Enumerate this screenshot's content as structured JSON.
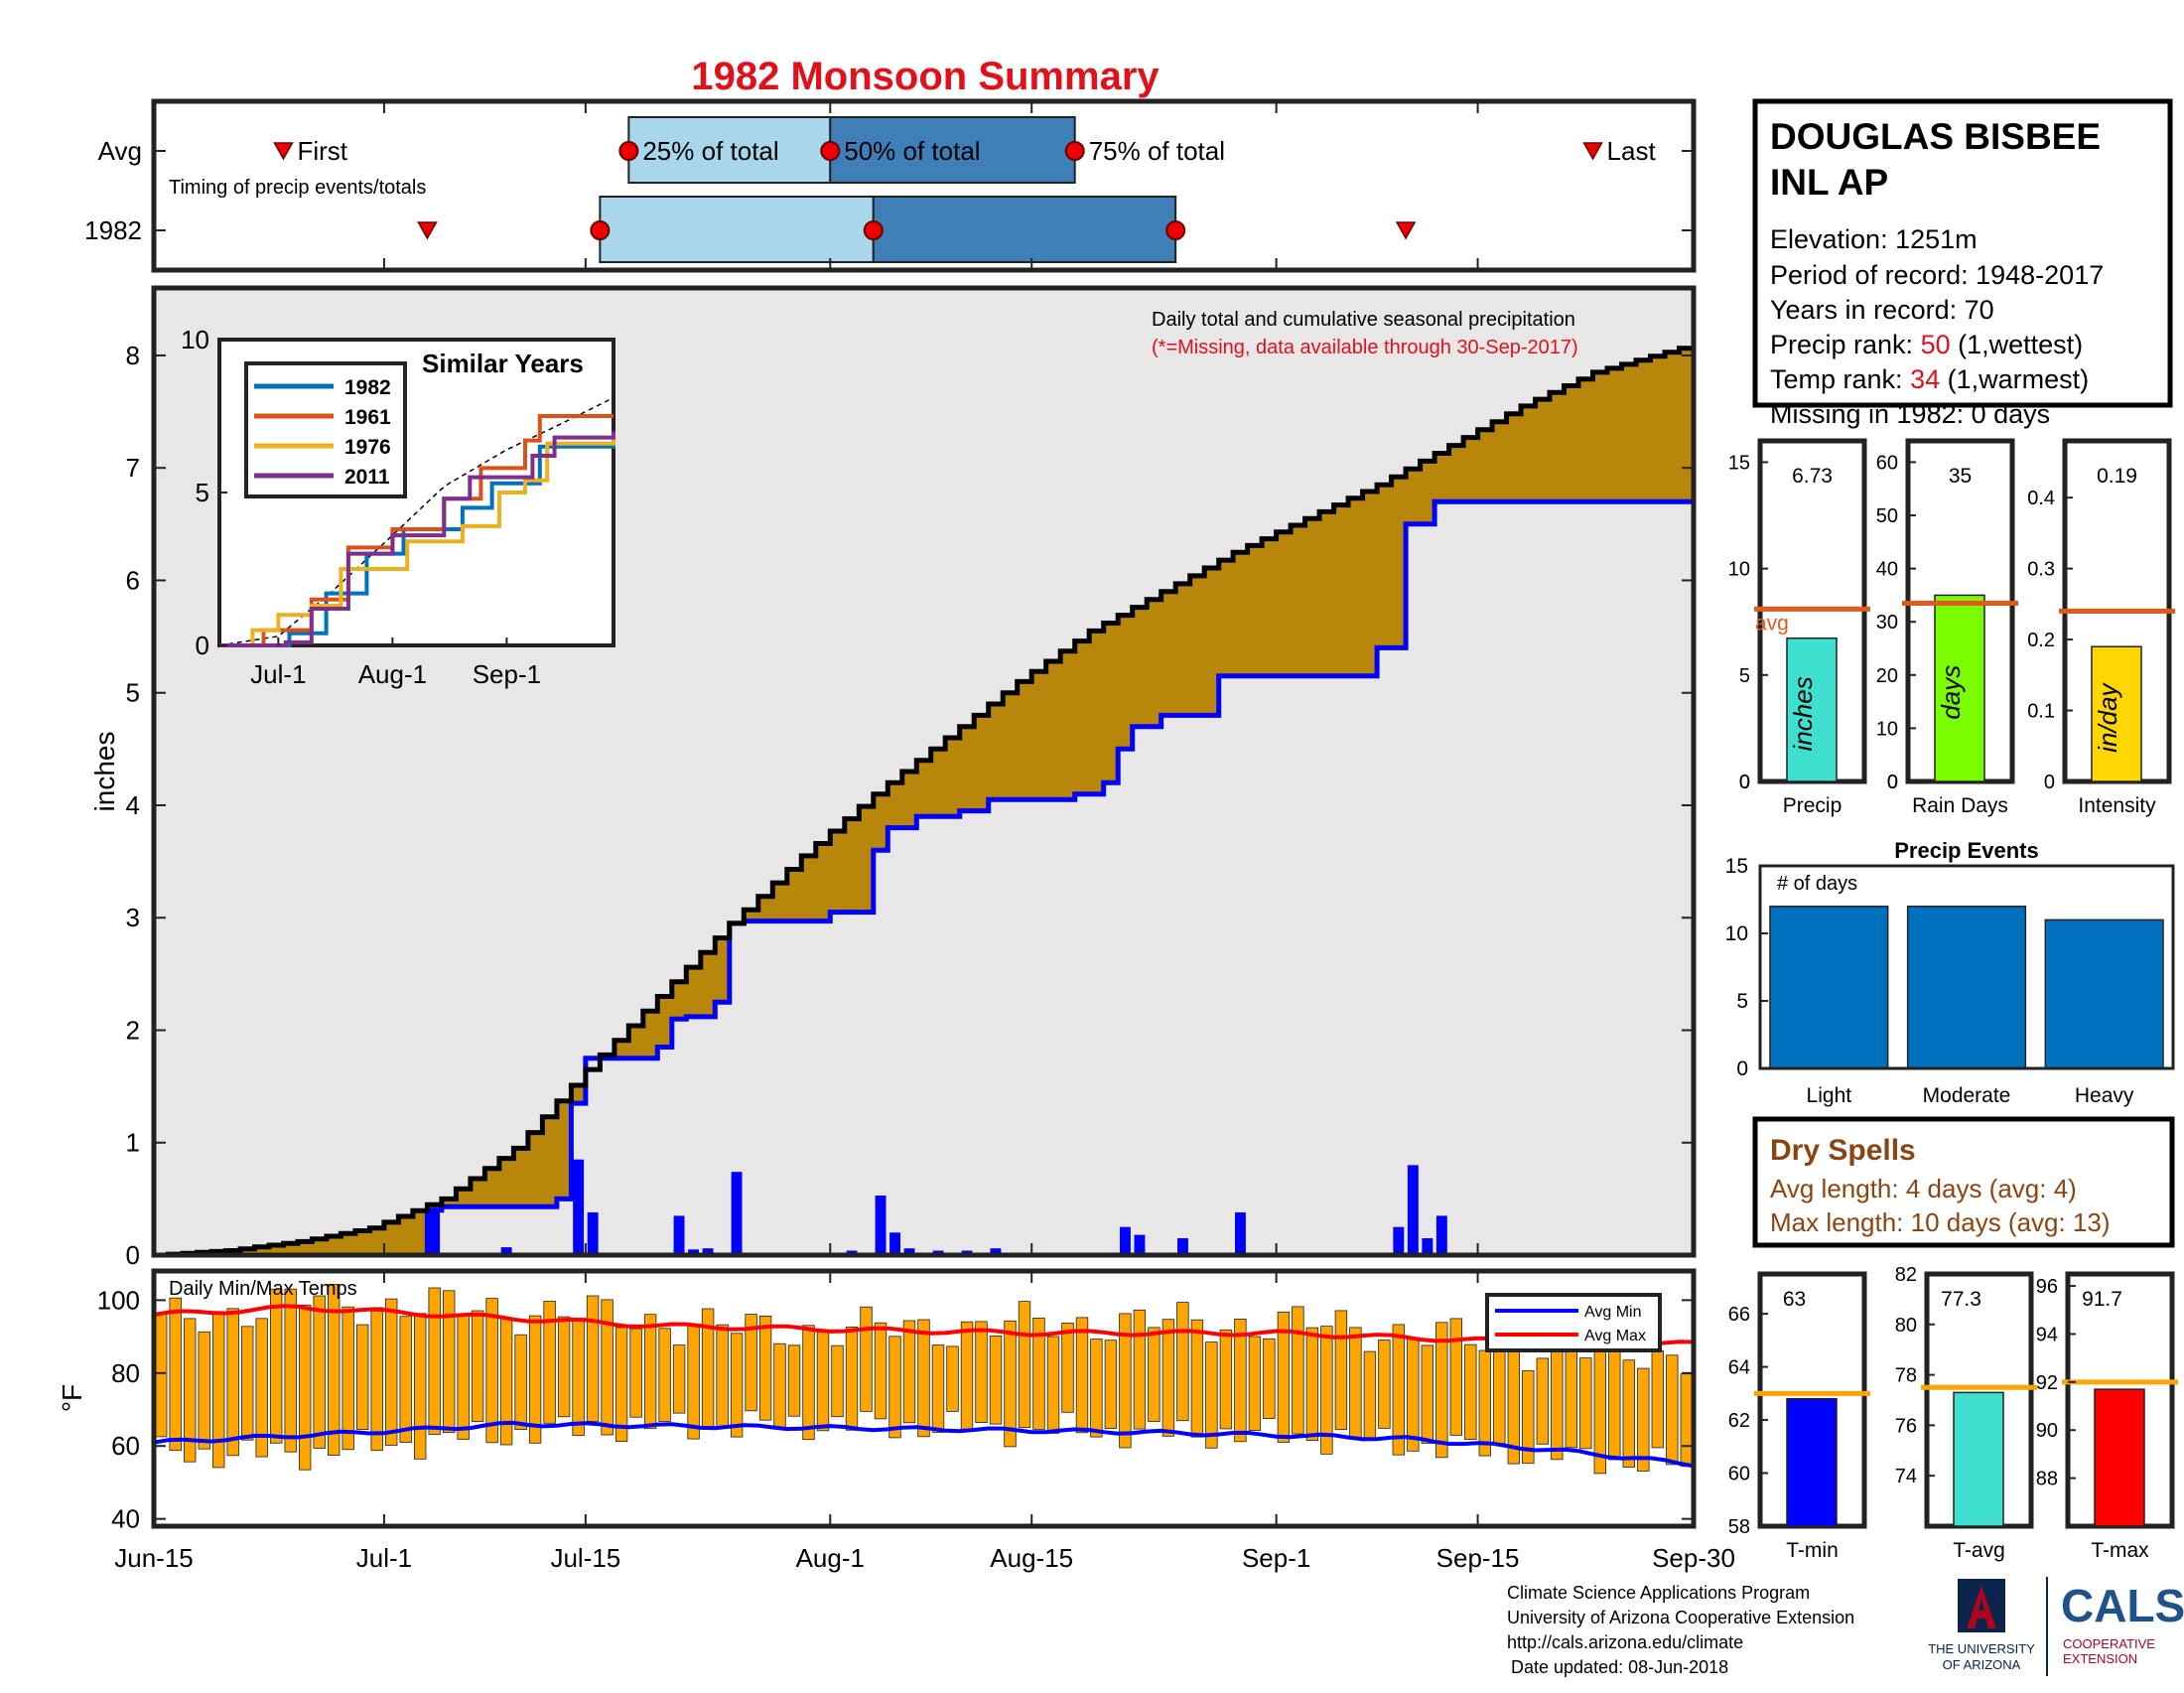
{
  "title": "1982 Monsoon Summary",
  "colors": {
    "accent_red": "#e0111b",
    "cumulative_fill": "#b8860b",
    "normal_fill": "#e8e6e6",
    "normal_line": "#0000ff",
    "daily_bar": "#0000ff",
    "temp_bar": "#ffa500",
    "avg_line": "#e05a1e",
    "light_blue": "#a9d6ea",
    "mid_blue": "#3f7fb8",
    "dry_spell": "#8b4513"
  },
  "timing": {
    "rows": [
      "Avg",
      "1982"
    ],
    "caption": "Timing of precip events/totals",
    "labels": {
      "first": "First",
      "p25": "25% of total",
      "p50": "50% of total",
      "p75": "75% of total",
      "last": "Last"
    },
    "avg": {
      "first": "2018-06-24",
      "p25": "2018-07-18",
      "p50": "2018-08-01",
      "p75": "2018-08-18",
      "last": "2018-09-23"
    },
    "y1982": {
      "first": "2018-07-04",
      "p25": "2018-07-16",
      "p50": "2018-08-04",
      "p75": "2018-08-25",
      "last": "2018-09-10"
    }
  },
  "station": {
    "name_line1": "DOUGLAS BISBEE",
    "name_line2": "INL AP",
    "elevation": "Elevation: 1251m",
    "period": "Period of record: 1948-2017",
    "years": "Years in record: 70",
    "precip_rank_label": "Precip rank: ",
    "precip_rank_value": "50",
    "precip_rank_note": " (1,wettest)",
    "temp_rank_label": "Temp rank: ",
    "temp_rank_value": "34",
    "temp_rank_note": " (1,warmest)",
    "missing": "Missing in 1982: 0 days"
  },
  "main_precip": {
    "note1": "Daily total and cumulative seasonal precipitation",
    "note2": "(*=Missing, data available through 30-Sep-2017)",
    "ylabel": "inches",
    "ylim": [
      0,
      8.6
    ],
    "yticks": [
      0,
      1,
      2,
      3,
      4,
      5,
      6,
      7,
      8
    ],
    "xticks": [
      {
        "label": "Jun-15",
        "date": "2018-06-15"
      },
      {
        "label": "Jul-1",
        "date": "2018-07-01"
      },
      {
        "label": "Jul-15",
        "date": "2018-07-15"
      },
      {
        "label": "Aug-1",
        "date": "2018-08-01"
      },
      {
        "label": "Aug-15",
        "date": "2018-08-15"
      },
      {
        "label": "Sep-1",
        "date": "2018-09-01"
      },
      {
        "label": "Sep-15",
        "date": "2018-09-15"
      },
      {
        "label": "Sep-30",
        "date": "2018-09-30"
      }
    ],
    "normal_cumulative": [
      [
        "2018-06-15",
        0.0
      ],
      [
        "2018-06-20",
        0.04
      ],
      [
        "2018-06-25",
        0.12
      ],
      [
        "2018-06-30",
        0.24
      ],
      [
        "2018-07-05",
        0.5
      ],
      [
        "2018-07-10",
        0.95
      ],
      [
        "2018-07-15",
        1.65
      ],
      [
        "2018-07-20",
        2.3
      ],
      [
        "2018-07-25",
        2.95
      ],
      [
        "2018-07-30",
        3.55
      ],
      [
        "2018-08-04",
        4.1
      ],
      [
        "2018-08-09",
        4.6
      ],
      [
        "2018-08-14",
        5.1
      ],
      [
        "2018-08-19",
        5.55
      ],
      [
        "2018-08-24",
        5.9
      ],
      [
        "2018-08-29",
        6.25
      ],
      [
        "2018-09-03",
        6.55
      ],
      [
        "2018-09-08",
        6.85
      ],
      [
        "2018-09-13",
        7.2
      ],
      [
        "2018-09-18",
        7.55
      ],
      [
        "2018-09-23",
        7.85
      ],
      [
        "2018-09-30",
        8.1
      ]
    ],
    "cumulative_1982": [
      [
        "2018-06-15",
        0.0
      ],
      [
        "2018-07-04",
        0.4
      ],
      [
        "2018-07-05",
        0.43
      ],
      [
        "2018-07-13",
        0.5
      ],
      [
        "2018-07-14",
        1.35
      ],
      [
        "2018-07-15",
        1.75
      ],
      [
        "2018-07-20",
        1.85
      ],
      [
        "2018-07-21",
        2.1
      ],
      [
        "2018-07-22",
        2.12
      ],
      [
        "2018-07-24",
        2.25
      ],
      [
        "2018-07-25",
        2.95
      ],
      [
        "2018-07-26",
        2.97
      ],
      [
        "2018-08-01",
        3.05
      ],
      [
        "2018-08-04",
        3.6
      ],
      [
        "2018-08-05",
        3.8
      ],
      [
        "2018-08-07",
        3.9
      ],
      [
        "2018-08-10",
        3.95
      ],
      [
        "2018-08-12",
        4.05
      ],
      [
        "2018-08-18",
        4.1
      ],
      [
        "2018-08-20",
        4.2
      ],
      [
        "2018-08-21",
        4.5
      ],
      [
        "2018-08-22",
        4.7
      ],
      [
        "2018-08-24",
        4.8
      ],
      [
        "2018-08-28",
        5.15
      ],
      [
        "2018-09-08",
        5.4
      ],
      [
        "2018-09-10",
        6.5
      ],
      [
        "2018-09-12",
        6.7
      ],
      [
        "2018-09-30",
        6.73
      ]
    ],
    "daily_1982": [
      [
        "2018-07-04",
        0.4
      ],
      [
        "2018-07-09",
        0.07
      ],
      [
        "2018-07-14",
        0.85
      ],
      [
        "2018-07-15",
        0.38
      ],
      [
        "2018-07-21",
        0.35
      ],
      [
        "2018-07-22",
        0.05
      ],
      [
        "2018-07-23",
        0.06
      ],
      [
        "2018-07-25",
        0.74
      ],
      [
        "2018-07-27",
        0.02
      ],
      [
        "2018-08-02",
        0.04
      ],
      [
        "2018-08-04",
        0.53
      ],
      [
        "2018-08-05",
        0.2
      ],
      [
        "2018-08-06",
        0.06
      ],
      [
        "2018-08-08",
        0.04
      ],
      [
        "2018-08-10",
        0.04
      ],
      [
        "2018-08-12",
        0.06
      ],
      [
        "2018-08-21",
        0.25
      ],
      [
        "2018-08-22",
        0.18
      ],
      [
        "2018-08-25",
        0.15
      ],
      [
        "2018-08-29",
        0.38
      ],
      [
        "2018-09-09",
        0.25
      ],
      [
        "2018-09-10",
        0.8
      ],
      [
        "2018-09-11",
        0.15
      ],
      [
        "2018-09-12",
        0.35
      ]
    ]
  },
  "similar_years": {
    "title": "Similar Years",
    "ylim": [
      0,
      10
    ],
    "yticks": [
      0,
      5,
      10
    ],
    "xticks": [
      {
        "label": "Jul-1",
        "date": "2018-07-01"
      },
      {
        "label": "Aug-1",
        "date": "2018-08-01"
      },
      {
        "label": "Sep-1",
        "date": "2018-09-01"
      }
    ],
    "series": [
      {
        "name": "1982",
        "color": "#0072bd",
        "points": [
          [
            "2018-06-15",
            0
          ],
          [
            "2018-07-04",
            0.4
          ],
          [
            "2018-07-14",
            1.7
          ],
          [
            "2018-07-25",
            3.0
          ],
          [
            "2018-08-04",
            3.8
          ],
          [
            "2018-08-20",
            4.5
          ],
          [
            "2018-08-28",
            5.3
          ],
          [
            "2018-09-10",
            6.5
          ],
          [
            "2018-09-30",
            6.73
          ]
        ]
      },
      {
        "name": "1961",
        "color": "#d95319",
        "points": [
          [
            "2018-06-15",
            0
          ],
          [
            "2018-06-27",
            0.5
          ],
          [
            "2018-07-10",
            1.5
          ],
          [
            "2018-07-20",
            3.2
          ],
          [
            "2018-08-01",
            3.8
          ],
          [
            "2018-08-15",
            4.8
          ],
          [
            "2018-08-25",
            5.8
          ],
          [
            "2018-09-06",
            6.7
          ],
          [
            "2018-09-10",
            7.5
          ],
          [
            "2018-09-30",
            7.5
          ]
        ]
      },
      {
        "name": "1976",
        "color": "#edb120",
        "points": [
          [
            "2018-06-15",
            0
          ],
          [
            "2018-06-24",
            0.5
          ],
          [
            "2018-07-01",
            1.0
          ],
          [
            "2018-07-10",
            1.3
          ],
          [
            "2018-07-18",
            2.5
          ],
          [
            "2018-08-05",
            3.4
          ],
          [
            "2018-08-20",
            3.9
          ],
          [
            "2018-08-30",
            5.0
          ],
          [
            "2018-09-06",
            5.4
          ],
          [
            "2018-09-12",
            6.6
          ],
          [
            "2018-09-30",
            6.8
          ]
        ]
      },
      {
        "name": "2011",
        "color": "#7e2f8e",
        "points": [
          [
            "2018-06-15",
            0
          ],
          [
            "2018-07-03",
            0.1
          ],
          [
            "2018-07-10",
            1.2
          ],
          [
            "2018-07-20",
            3.0
          ],
          [
            "2018-08-01",
            3.6
          ],
          [
            "2018-08-15",
            4.8
          ],
          [
            "2018-08-22",
            5.5
          ],
          [
            "2018-09-08",
            6.2
          ],
          [
            "2018-09-14",
            6.8
          ],
          [
            "2018-09-30",
            7.0
          ]
        ]
      }
    ],
    "normal_points": [
      [
        "2018-06-15",
        0
      ],
      [
        "2018-07-01",
        0.3
      ],
      [
        "2018-07-15",
        1.7
      ],
      [
        "2018-08-01",
        3.6
      ],
      [
        "2018-08-15",
        5.2
      ],
      [
        "2018-09-01",
        6.4
      ],
      [
        "2018-09-15",
        7.2
      ],
      [
        "2018-09-30",
        8.1
      ]
    ]
  },
  "mini_bars": [
    {
      "label": "Precip",
      "value": 6.73,
      "value_text": "6.73",
      "avg": 8.1,
      "avg_label": "avg",
      "ylim": [
        0,
        16
      ],
      "yticks": [
        0,
        5,
        10,
        15
      ],
      "color": "#40e0d0",
      "unit": "inches"
    },
    {
      "label": "Rain Days",
      "value": 35,
      "value_text": "35",
      "avg": 33.5,
      "ylim": [
        0,
        64
      ],
      "yticks": [
        0,
        10,
        20,
        30,
        40,
        50,
        60
      ],
      "color": "#7cfc00",
      "unit": "days"
    },
    {
      "label": "Intensity",
      "value": 0.19,
      "value_text": "0.19",
      "avg": 0.24,
      "ylim": [
        0,
        0.48
      ],
      "yticks": [
        0.1,
        0.2,
        0.3,
        0.4
      ],
      "color": "#ffd700",
      "unit": "in/day"
    }
  ],
  "precip_events": {
    "title": "Precip Events",
    "ylabel_note": "# of days",
    "categories": [
      "Light",
      "Moderate",
      "Heavy"
    ],
    "values": [
      12,
      12,
      11
    ],
    "ylim": [
      0,
      15
    ],
    "yticks": [
      0,
      5,
      10,
      15
    ],
    "color": "#0072bd"
  },
  "dry_spells": {
    "title": "Dry Spells",
    "avg_line": "Avg length: 4 days (avg: 4)",
    "max_line": "Max length: 10 days (avg: 13)"
  },
  "temps": {
    "title": "Daily Min/Max Temps",
    "ylabel": "°F",
    "ylim": [
      38,
      108
    ],
    "yticks": [
      40,
      60,
      80,
      100
    ],
    "legend": [
      "Avg Min",
      "Avg Max"
    ],
    "avg_max": [
      [
        "2018-06-15",
        96
      ],
      [
        "2018-06-25",
        98
      ],
      [
        "2018-07-10",
        95
      ],
      [
        "2018-07-20",
        93
      ],
      [
        "2018-08-01",
        92
      ],
      [
        "2018-08-15",
        91
      ],
      [
        "2018-09-01",
        91
      ],
      [
        "2018-09-15",
        89
      ],
      [
        "2018-09-30",
        88
      ]
    ],
    "avg_min": [
      [
        "2018-06-15",
        61
      ],
      [
        "2018-07-01",
        64
      ],
      [
        "2018-07-10",
        66
      ],
      [
        "2018-08-01",
        65
      ],
      [
        "2018-08-20",
        64
      ],
      [
        "2018-09-01",
        63
      ],
      [
        "2018-09-10",
        62
      ],
      [
        "2018-09-20",
        59
      ],
      [
        "2018-09-30",
        55
      ]
    ],
    "daily_max_anchors": [
      [
        "2018-06-15",
        94
      ],
      [
        "2018-06-25",
        100
      ],
      [
        "2018-07-05",
        98
      ],
      [
        "2018-07-15",
        96
      ],
      [
        "2018-07-25",
        92
      ],
      [
        "2018-08-05",
        92
      ],
      [
        "2018-08-20",
        94
      ],
      [
        "2018-09-05",
        93
      ],
      [
        "2018-09-20",
        86
      ],
      [
        "2018-09-30",
        85
      ]
    ],
    "daily_min_anchors": [
      [
        "2018-06-15",
        58
      ],
      [
        "2018-06-25",
        58
      ],
      [
        "2018-07-05",
        62
      ],
      [
        "2018-07-15",
        65
      ],
      [
        "2018-08-01",
        66
      ],
      [
        "2018-08-20",
        64
      ],
      [
        "2018-09-01",
        63
      ],
      [
        "2018-09-15",
        59
      ],
      [
        "2018-09-30",
        54
      ]
    ]
  },
  "temp_bars": [
    {
      "label": "T-min",
      "value": 62.8,
      "value_text": "63",
      "avg": 63.0,
      "ylim": [
        58,
        67.5
      ],
      "yticks": [
        58,
        60,
        62,
        64,
        66
      ],
      "color": "#0000ff"
    },
    {
      "label": "T-avg",
      "value": 77.3,
      "value_text": "77.3",
      "avg": 77.5,
      "ylim": [
        72,
        82
      ],
      "yticks": [
        74,
        76,
        78,
        80,
        82
      ],
      "color": "#40e0d0"
    },
    {
      "label": "T-max",
      "value": 91.7,
      "value_text": "91.7",
      "avg": 92.0,
      "ylim": [
        86,
        96.5
      ],
      "yticks": [
        88,
        90,
        92,
        94,
        96
      ],
      "color": "#ff0000"
    }
  ],
  "footer": {
    "line1": "Climate Science Applications Program",
    "line2": "University of Arizona Cooperative Extension",
    "line3": "http://cals.arizona.edu/climate",
    "line4": "Date updated: 08-Jun-2018",
    "logo_ua_line1": "THE UNIVERSITY",
    "logo_ua_line2": "OF ARIZONA",
    "logo_cals": "CALS",
    "logo_cals_line1": "COOPERATIVE",
    "logo_cals_line2": "EXTENSION"
  }
}
